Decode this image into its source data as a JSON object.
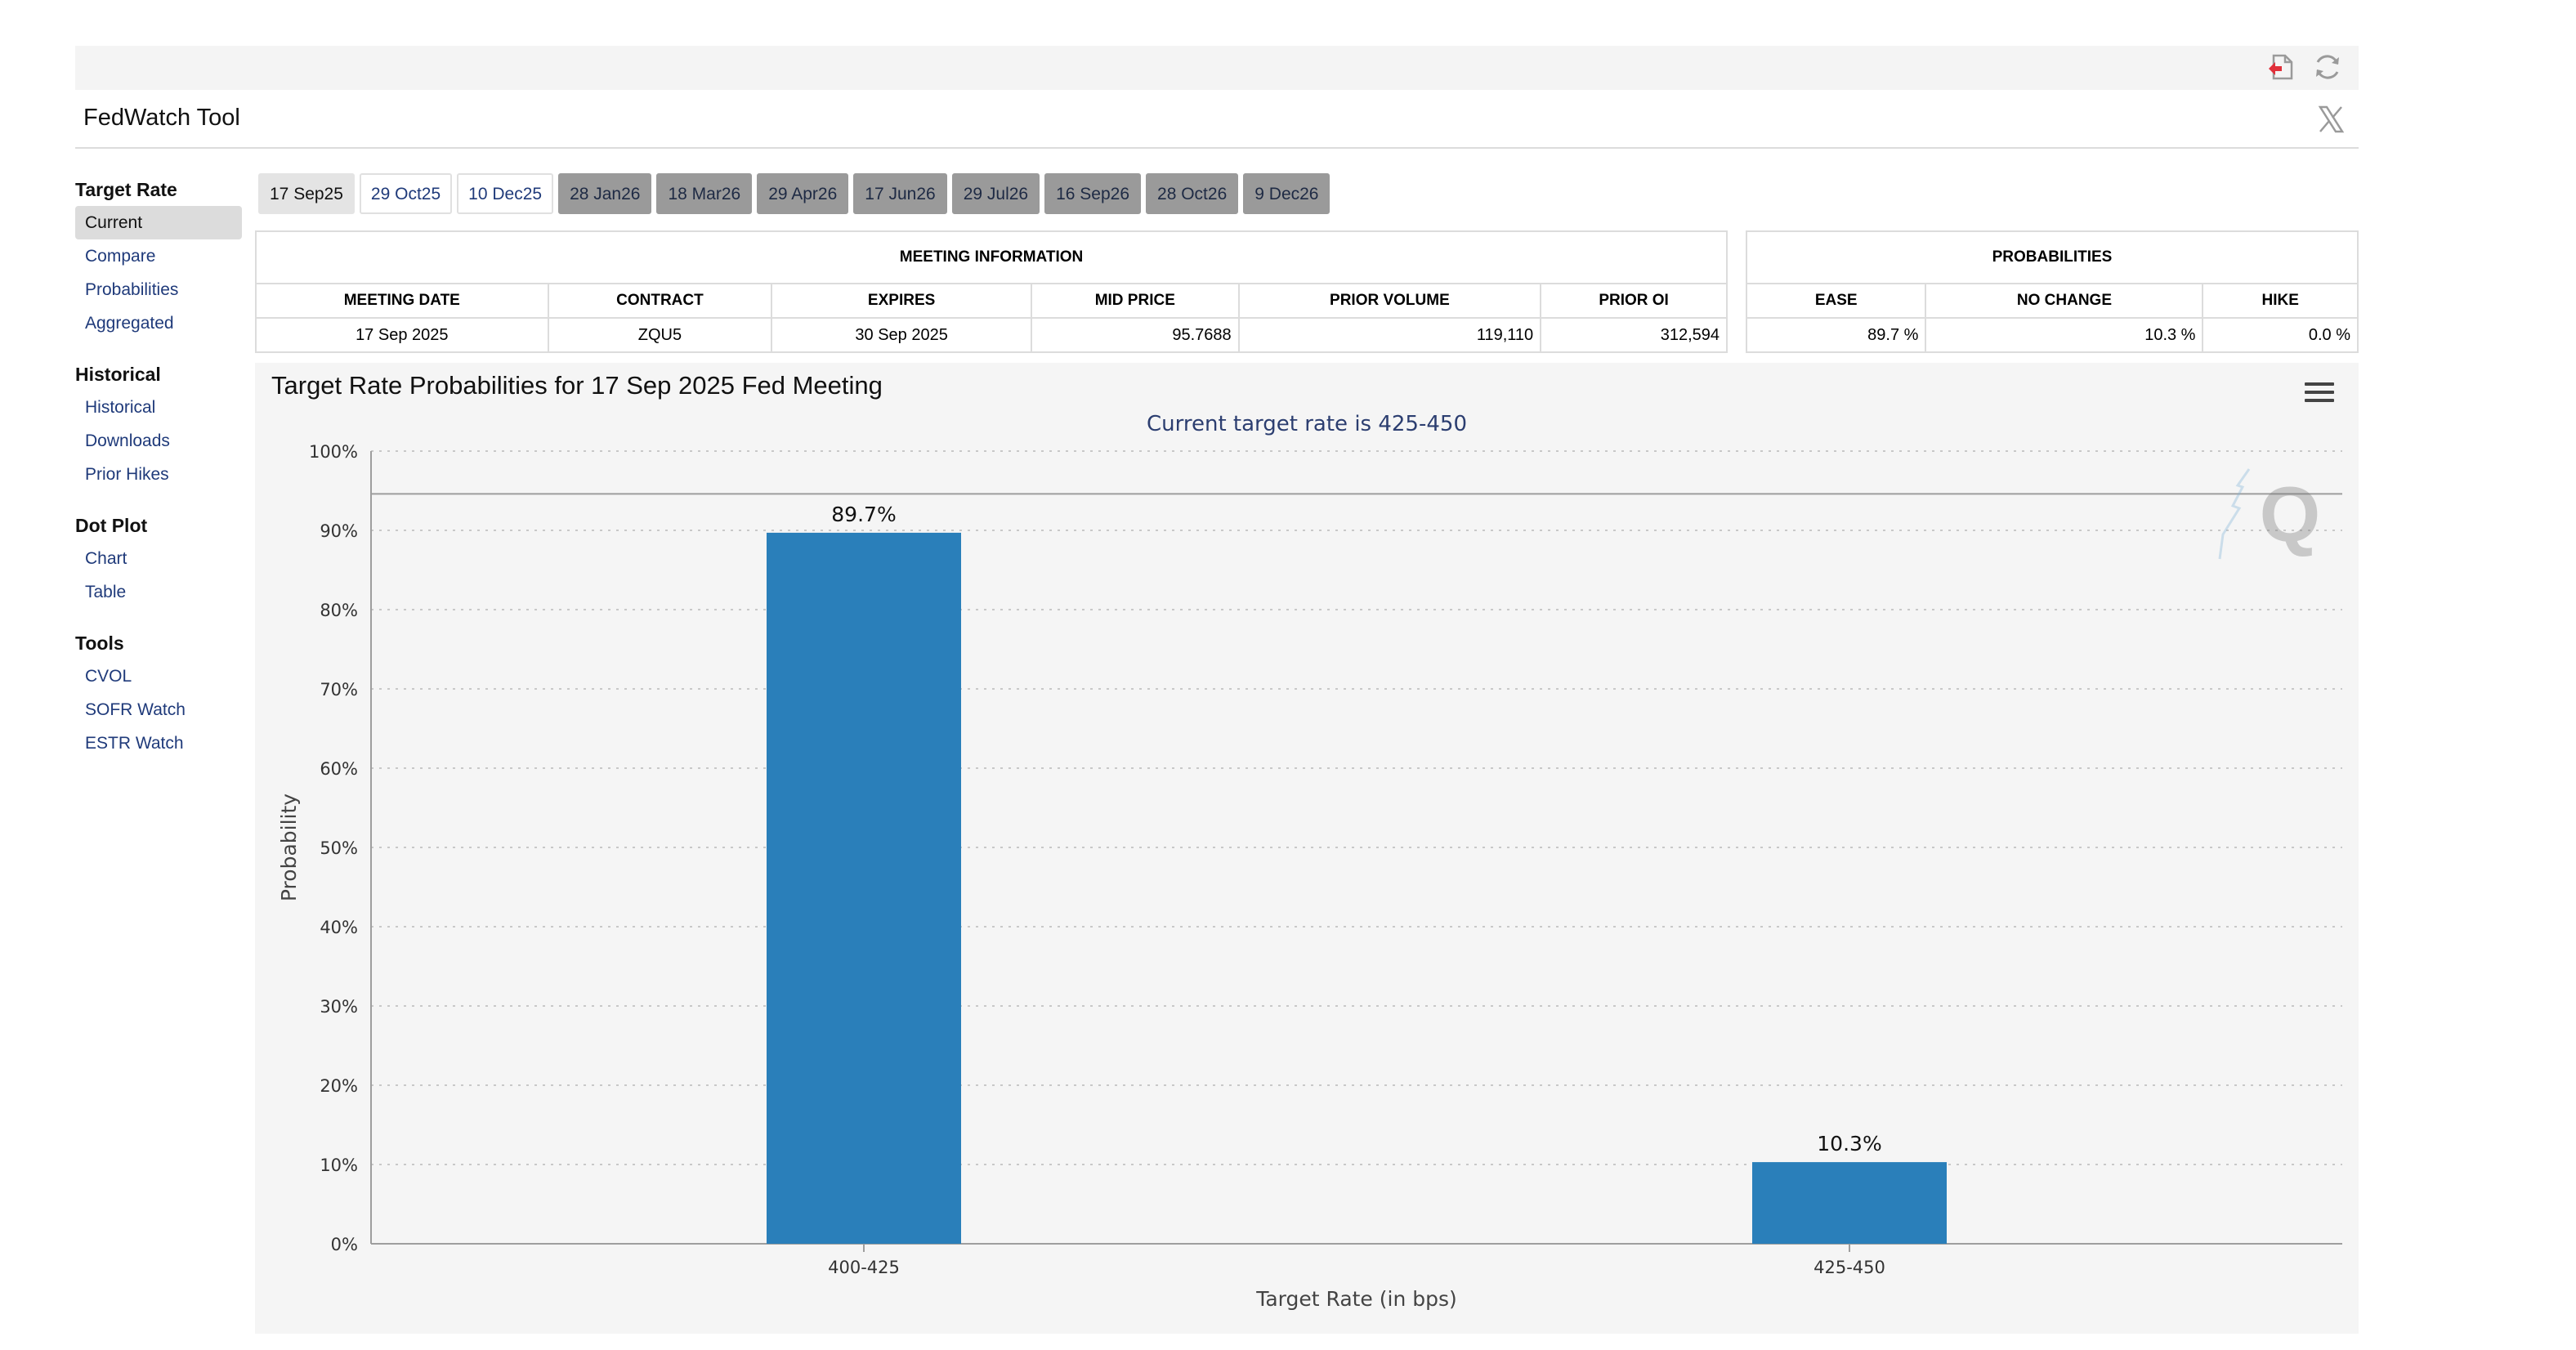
{
  "app": {
    "title": "FedWatch Tool"
  },
  "toolbar": {
    "icons": [
      "pdf-export-icon",
      "refresh-icon"
    ],
    "social_icon": "x-logo-icon"
  },
  "sidebar": {
    "groups": [
      {
        "title": "Target Rate",
        "items": [
          {
            "label": "Current",
            "active": true
          },
          {
            "label": "Compare"
          },
          {
            "label": "Probabilities"
          },
          {
            "label": "Aggregated"
          }
        ]
      },
      {
        "title": "Historical",
        "items": [
          {
            "label": "Historical"
          },
          {
            "label": "Downloads"
          },
          {
            "label": "Prior Hikes"
          }
        ]
      },
      {
        "title": "Dot Plot",
        "items": [
          {
            "label": "Chart"
          },
          {
            "label": "Table"
          }
        ]
      },
      {
        "title": "Tools",
        "items": [
          {
            "label": "CVOL"
          },
          {
            "label": "SOFR Watch"
          },
          {
            "label": "ESTR Watch"
          }
        ]
      }
    ]
  },
  "meeting_tabs": [
    {
      "label": "17 Sep25",
      "state": "selected"
    },
    {
      "label": "29 Oct25",
      "state": "normal"
    },
    {
      "label": "10 Dec25",
      "state": "normal"
    },
    {
      "label": "28 Jan26",
      "state": "disabled"
    },
    {
      "label": "18 Mar26",
      "state": "disabled"
    },
    {
      "label": "29 Apr26",
      "state": "disabled"
    },
    {
      "label": "17 Jun26",
      "state": "disabled"
    },
    {
      "label": "29 Jul26",
      "state": "disabled"
    },
    {
      "label": "16 Sep26",
      "state": "disabled"
    },
    {
      "label": "28 Oct26",
      "state": "disabled"
    },
    {
      "label": "9 Dec26",
      "state": "disabled"
    }
  ],
  "meeting_info": {
    "heading": "MEETING INFORMATION",
    "columns": [
      "MEETING DATE",
      "CONTRACT",
      "EXPIRES",
      "MID PRICE",
      "PRIOR VOLUME",
      "PRIOR OI"
    ],
    "row": [
      "17 Sep 2025",
      "ZQU5",
      "30 Sep 2025",
      "95.7688",
      "119,110",
      "312,594"
    ]
  },
  "probabilities": {
    "heading": "PROBABILITIES",
    "columns": [
      "EASE",
      "NO CHANGE",
      "HIKE"
    ],
    "row": [
      "89.7 %",
      "10.3 %",
      "0.0 %"
    ]
  },
  "chart": {
    "title": "Target Rate Probabilities for 17 Sep 2025 Fed Meeting",
    "subtitle": "Current target rate is 425-450",
    "menu_icon": "hamburger-menu-icon",
    "watermark_icon": "q-watermark-icon"
  },
  "chart_data": {
    "type": "bar",
    "title": "Target Rate Probabilities for 17 Sep 2025 Fed Meeting",
    "subtitle": "Current target rate is 425-450",
    "xlabel": "Target Rate (in bps)",
    "ylabel": "Probability",
    "categories": [
      "400-425",
      "425-450"
    ],
    "values": [
      89.7,
      10.3
    ],
    "data_labels": [
      "89.7%",
      "10.3%"
    ],
    "ylim": [
      0,
      100
    ],
    "yticks": [
      "0%",
      "10%",
      "20%",
      "30%",
      "40%",
      "50%",
      "60%",
      "70%",
      "80%",
      "90%",
      "100%"
    ],
    "reference_line": 94.6,
    "grid": true,
    "color": "#2a7fba"
  }
}
